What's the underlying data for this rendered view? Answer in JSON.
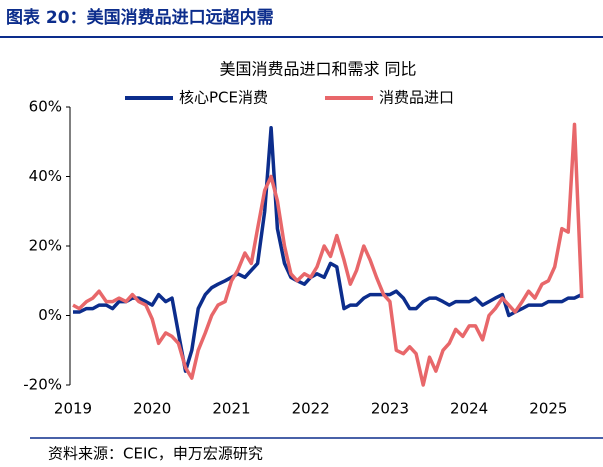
{
  "header": {
    "title": "图表 20：美国消费品进口远超内需"
  },
  "chart_data": {
    "type": "line",
    "title": "美国消费品进口和需求 同比",
    "x": [
      2019,
      2019.08,
      2019.17,
      2019.25,
      2019.33,
      2019.42,
      2019.5,
      2019.58,
      2019.67,
      2019.75,
      2019.83,
      2019.92,
      2020,
      2020.08,
      2020.17,
      2020.25,
      2020.33,
      2020.42,
      2020.5,
      2020.58,
      2020.67,
      2020.75,
      2020.83,
      2020.92,
      2021,
      2021.08,
      2021.17,
      2021.25,
      2021.33,
      2021.42,
      2021.5,
      2021.58,
      2021.67,
      2021.75,
      2021.83,
      2021.92,
      2022,
      2022.08,
      2022.17,
      2022.25,
      2022.33,
      2022.42,
      2022.5,
      2022.58,
      2022.67,
      2022.75,
      2022.83,
      2022.92,
      2023,
      2023.08,
      2023.17,
      2023.25,
      2023.33,
      2023.42,
      2023.5,
      2023.58,
      2023.67,
      2023.75,
      2023.83,
      2023.92,
      2024,
      2024.08,
      2024.17,
      2024.25,
      2024.33,
      2024.42,
      2024.5,
      2024.58,
      2024.67,
      2024.75,
      2024.83,
      2024.92,
      2025,
      2025.08,
      2025.17,
      2025.25,
      2025.33,
      2025.42
    ],
    "series": [
      {
        "name": "核心PCE消费",
        "color": "#0c2d8c",
        "values": [
          1,
          1,
          2,
          2,
          3,
          3,
          2,
          4,
          4,
          5,
          5,
          4,
          3,
          6,
          4,
          5,
          -5,
          -16,
          -10,
          2,
          6,
          8,
          9,
          10,
          11,
          12,
          11,
          13,
          15,
          30,
          54,
          25,
          15,
          11,
          10,
          9,
          11,
          12,
          11,
          15,
          14,
          2,
          3,
          3,
          5,
          6,
          6,
          6,
          6,
          7,
          5,
          2,
          2,
          4,
          5,
          5,
          4,
          3,
          4,
          4,
          4,
          5,
          3,
          4,
          5,
          6,
          0,
          1,
          2,
          3,
          3,
          3,
          4,
          4,
          4,
          5,
          5,
          6
        ]
      },
      {
        "name": "消费品进口",
        "color": "#e8676a",
        "values": [
          3,
          2,
          4,
          5,
          7,
          4,
          4,
          5,
          4,
          6,
          4,
          3,
          -1,
          -8,
          -5,
          -6,
          -8,
          -15,
          -18,
          -10,
          -5,
          0,
          3,
          4,
          10,
          13,
          18,
          15,
          25,
          36,
          40,
          33,
          20,
          12,
          10,
          12,
          11,
          14,
          20,
          17,
          23,
          16,
          9,
          13,
          20,
          16,
          11,
          6,
          4,
          -10,
          -11,
          -9,
          -11,
          -20,
          -12,
          -16,
          -10,
          -8,
          -4,
          -6,
          -3,
          -3,
          -7,
          0,
          2,
          5,
          3,
          1,
          4,
          7,
          5,
          9,
          10,
          14,
          25,
          24,
          55,
          5
        ]
      }
    ],
    "xlim": [
      2019,
      2025.5
    ],
    "xticks": [
      2019,
      2020,
      2021,
      2022,
      2023,
      2024,
      2025
    ],
    "ylim": [
      -20,
      60
    ],
    "yticks": [
      {
        "value": -20,
        "label": "-20%"
      },
      {
        "value": 0,
        "label": "0%"
      },
      {
        "value": 20,
        "label": "20%"
      },
      {
        "value": 40,
        "label": "40%"
      },
      {
        "value": 60,
        "label": "60%"
      }
    ],
    "grid": false,
    "source": "资料来源：CEIC，申万宏源研究"
  }
}
